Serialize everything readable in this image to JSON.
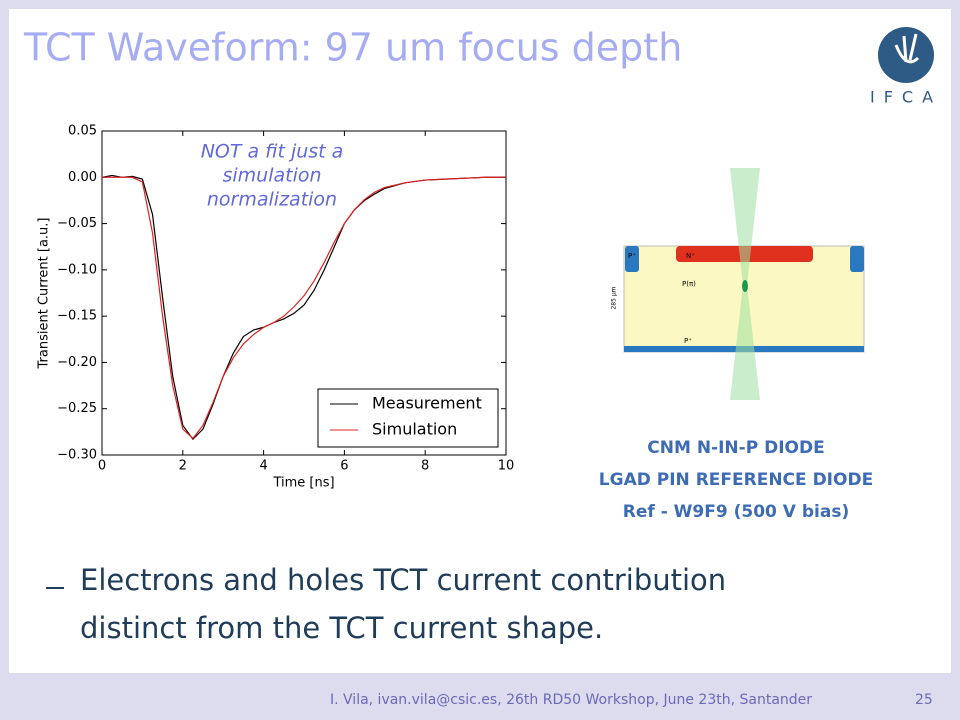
{
  "slide": {
    "title": "TCT Waveform: 97 um focus depth",
    "logo": "IFCA",
    "caption": [
      "CNM N-IN-P DIODE",
      "LGAD PIN REFERENCE DIODE",
      "Ref - W9F9  (500 V bias)"
    ],
    "bullet": [
      "Electrons and holes TCT current contribution",
      "distinct from the TCT current shape."
    ],
    "footer": "I. Vila, ivan.vila@csic.es, 26th RD50 Workshop, June 23th, Santander",
    "page": "25"
  },
  "diagram": {
    "labels": [
      "P⁺",
      "N⁺",
      "P(π)",
      "285 μm",
      "P⁺"
    ]
  },
  "chart_data": {
    "type": "line",
    "xlabel": "Time [ns]",
    "ylabel": "Transient Current [a.u.]",
    "annotation": [
      "NOT a fit just a",
      "simulation",
      "normalization"
    ],
    "x": [
      0,
      0.25,
      0.5,
      0.75,
      1.0,
      1.25,
      1.5,
      1.75,
      2.0,
      2.25,
      2.5,
      2.75,
      3.0,
      3.25,
      3.5,
      3.75,
      4.0,
      4.25,
      4.5,
      4.75,
      5.0,
      5.25,
      5.5,
      5.75,
      6.0,
      6.25,
      6.5,
      6.75,
      7.0,
      7.5,
      8.0,
      8.5,
      9.0,
      9.5,
      10
    ],
    "series": [
      {
        "name": "Measurement",
        "color": "#000000",
        "values": [
          0.0,
          0.002,
          0.0,
          0.001,
          -0.002,
          -0.04,
          -0.13,
          -0.215,
          -0.268,
          -0.283,
          -0.272,
          -0.245,
          -0.215,
          -0.19,
          -0.172,
          -0.165,
          -0.162,
          -0.157,
          -0.153,
          -0.147,
          -0.138,
          -0.122,
          -0.1,
          -0.075,
          -0.05,
          -0.035,
          -0.025,
          -0.018,
          -0.012,
          -0.006,
          -0.003,
          -0.002,
          -0.001,
          0.0,
          0.0
        ]
      },
      {
        "name": "Simulation",
        "color": "#e02020",
        "values": [
          0.0,
          0.0,
          0.0,
          0.0,
          -0.005,
          -0.06,
          -0.15,
          -0.225,
          -0.272,
          -0.282,
          -0.268,
          -0.243,
          -0.215,
          -0.195,
          -0.18,
          -0.17,
          -0.162,
          -0.157,
          -0.15,
          -0.14,
          -0.128,
          -0.112,
          -0.092,
          -0.07,
          -0.05,
          -0.035,
          -0.024,
          -0.016,
          -0.011,
          -0.006,
          -0.003,
          -0.002,
          -0.001,
          0.0,
          0.0
        ]
      }
    ],
    "xlim": [
      0,
      10
    ],
    "xticks": [
      0,
      2,
      4,
      6,
      8,
      10
    ],
    "ylim": [
      -0.3,
      0.05
    ],
    "yticks": [
      {
        "value": 0.05,
        "label": "0.05"
      },
      {
        "value": 0.0,
        "label": "0.00"
      },
      {
        "value": -0.05,
        "label": "−0.05"
      },
      {
        "value": -0.1,
        "label": "−0.10"
      },
      {
        "value": -0.15,
        "label": "−0.15"
      },
      {
        "value": -0.2,
        "label": "−0.20"
      },
      {
        "value": -0.25,
        "label": "−0.25"
      },
      {
        "value": -0.3,
        "label": "−0.30"
      }
    ],
    "legend": "lower right",
    "grid": false
  }
}
